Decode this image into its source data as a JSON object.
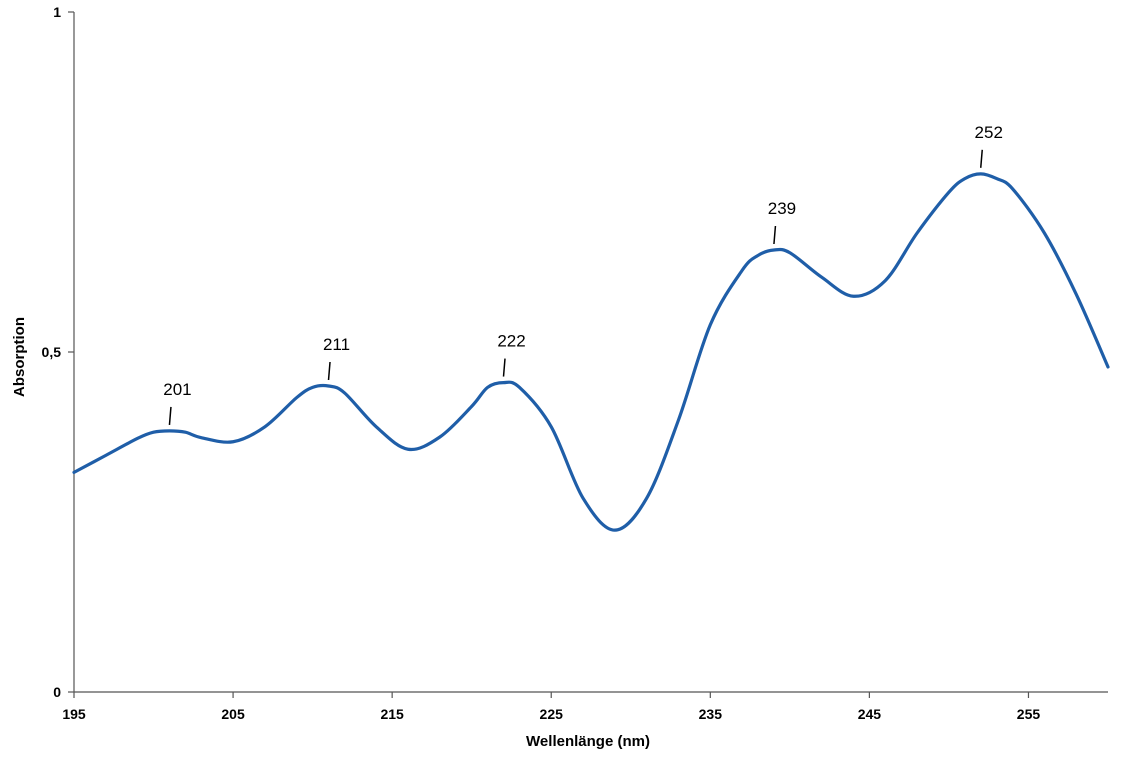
{
  "chart_data": {
    "type": "line",
    "title": "",
    "xlabel": "Wellenlänge (nm)",
    "ylabel": "Absorption",
    "xlim": [
      195,
      260
    ],
    "ylim": [
      0,
      1
    ],
    "x_ticks": [
      "195",
      "205",
      "215",
      "225",
      "235",
      "245",
      "255"
    ],
    "y_ticks": [
      "0",
      "0,5",
      "1"
    ],
    "grid": false,
    "series_color": "#1f5ea8",
    "series": [
      {
        "x": [
          195,
          197,
          199,
          200,
          201,
          202,
          203,
          205,
          207,
          209,
          210,
          211,
          212,
          214,
          216,
          218,
          220,
          221,
          222,
          223,
          225,
          227,
          229,
          231,
          233,
          235,
          237,
          238,
          239,
          240,
          242,
          244,
          246,
          248,
          250,
          251,
          252,
          253,
          254,
          256,
          258,
          260
        ],
        "y": [
          0.323,
          0.348,
          0.373,
          0.382,
          0.384,
          0.382,
          0.374,
          0.368,
          0.39,
          0.433,
          0.448,
          0.45,
          0.44,
          0.39,
          0.357,
          0.375,
          0.42,
          0.448,
          0.455,
          0.448,
          0.39,
          0.285,
          0.238,
          0.285,
          0.4,
          0.54,
          0.62,
          0.642,
          0.65,
          0.646,
          0.61,
          0.582,
          0.605,
          0.675,
          0.735,
          0.755,
          0.762,
          0.755,
          0.74,
          0.675,
          0.585,
          0.478
        ]
      }
    ],
    "annotations": [
      {
        "x": 201,
        "y": 0.384,
        "text": "201"
      },
      {
        "x": 211,
        "y": 0.45,
        "text": "211"
      },
      {
        "x": 222,
        "y": 0.455,
        "text": "222"
      },
      {
        "x": 239,
        "y": 0.65,
        "text": "239"
      },
      {
        "x": 252,
        "y": 0.762,
        "text": "252"
      }
    ]
  }
}
